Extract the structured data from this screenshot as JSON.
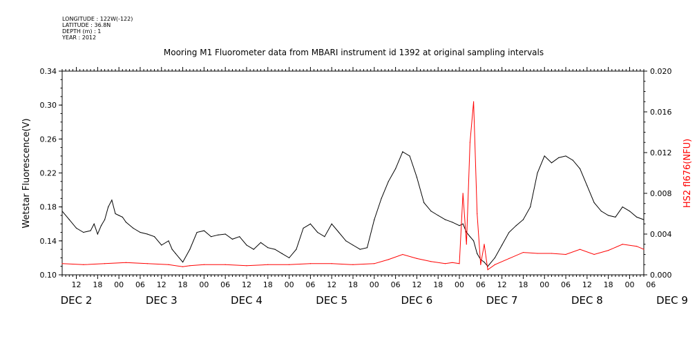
{
  "header": {
    "meta_lines": [
      "LONGITUDE : 122W(-122)",
      "LATITUDE : 36.8N",
      "DEPTH (m) : 1",
      "YEAR : 2012"
    ],
    "title": "Mooring M1 Fluorometer data from MBARI instrument id 1392 at original sampling intervals"
  },
  "colors": {
    "left_series": "#000000",
    "right_series": "#ff0000",
    "axis": "#000000"
  },
  "chart_data": {
    "type": "line",
    "title": "Mooring M1 Fluorometer data from MBARI instrument id 1392 at original sampling intervals",
    "x_hours_per_tick": 6,
    "x_hour_labels": [
      "12",
      "18",
      "00",
      "06",
      "12",
      "18",
      "00",
      "06",
      "12",
      "18",
      "00",
      "06",
      "12",
      "18",
      "00",
      "06",
      "12",
      "18",
      "00",
      "06",
      "12",
      "18",
      "00",
      "06",
      "12",
      "18",
      "00",
      "06"
    ],
    "x_day_labels": [
      "DEC  2",
      "DEC  3",
      "DEC  4",
      "DEC  5",
      "DEC  6",
      "DEC  7",
      "DEC  8",
      "DEC  9"
    ],
    "xlim_hours": [
      8,
      172
    ],
    "y_left": {
      "label": "Wetstar Fluorescence(V)",
      "ylim": [
        0.1,
        0.34
      ],
      "ticks": [
        "0.10",
        "0.14",
        "0.18",
        "0.22",
        "0.26",
        "0.30",
        "0.34"
      ]
    },
    "y_right": {
      "label": "HS2 fl676(NFU)",
      "ylim": [
        0.0,
        0.02
      ],
      "ticks": [
        "0.000",
        "0.004",
        "0.008",
        "0.012",
        "0.016",
        "0.020"
      ]
    },
    "series": [
      {
        "name": "Wetstar Fluorescence(V)",
        "axis": "left",
        "x_hours": [
          8,
          10,
          12,
          14,
          16,
          17,
          18,
          19,
          20,
          21,
          22,
          23,
          24,
          25,
          26,
          28,
          30,
          32,
          34,
          36,
          38,
          39,
          40,
          41,
          42,
          44,
          46,
          48,
          50,
          52,
          54,
          56,
          58,
          60,
          62,
          64,
          66,
          68,
          70,
          72,
          74,
          76,
          78,
          80,
          82,
          84,
          86,
          88,
          90,
          92,
          94,
          96,
          98,
          100,
          102,
          104,
          106,
          108,
          110,
          112,
          114,
          116,
          118,
          120,
          121,
          122,
          123,
          124,
          125,
          126,
          127,
          128,
          130,
          132,
          134,
          136,
          138,
          140,
          142,
          144,
          146,
          148,
          150,
          152,
          154,
          156,
          158,
          160,
          162,
          164,
          166,
          168,
          170,
          172
        ],
        "values": [
          0.175,
          0.165,
          0.155,
          0.15,
          0.152,
          0.16,
          0.148,
          0.158,
          0.165,
          0.18,
          0.188,
          0.172,
          0.17,
          0.168,
          0.162,
          0.155,
          0.15,
          0.148,
          0.145,
          0.135,
          0.14,
          0.13,
          0.125,
          0.12,
          0.115,
          0.13,
          0.15,
          0.152,
          0.145,
          0.147,
          0.148,
          0.142,
          0.145,
          0.135,
          0.13,
          0.138,
          0.132,
          0.13,
          0.125,
          0.12,
          0.13,
          0.155,
          0.16,
          0.15,
          0.145,
          0.16,
          0.15,
          0.14,
          0.135,
          0.13,
          0.132,
          0.165,
          0.19,
          0.21,
          0.225,
          0.245,
          0.24,
          0.215,
          0.185,
          0.175,
          0.17,
          0.165,
          0.162,
          0.158,
          0.16,
          0.15,
          0.145,
          0.14,
          0.125,
          0.118,
          0.115,
          0.11,
          0.12,
          0.135,
          0.15,
          0.158,
          0.165,
          0.18,
          0.22,
          0.24,
          0.232,
          0.238,
          0.24,
          0.235,
          0.225,
          0.205,
          0.185,
          0.175,
          0.17,
          0.168,
          0.18,
          0.175,
          0.168,
          0.165
        ]
      },
      {
        "name": "HS2 fl676(NFU)",
        "axis": "right",
        "x_hours": [
          8,
          14,
          20,
          26,
          32,
          38,
          42,
          44,
          48,
          54,
          60,
          66,
          72,
          78,
          84,
          90,
          96,
          100,
          104,
          108,
          112,
          116,
          118,
          120,
          121,
          122,
          123,
          124,
          125,
          126,
          127,
          128,
          130,
          134,
          138,
          142,
          146,
          150,
          154,
          158,
          162,
          166,
          170,
          172
        ],
        "values": [
          0.0011,
          0.001,
          0.0011,
          0.0012,
          0.0011,
          0.001,
          0.0008,
          0.0009,
          0.001,
          0.001,
          0.0009,
          0.001,
          0.001,
          0.0011,
          0.0011,
          0.001,
          0.0011,
          0.0015,
          0.002,
          0.0016,
          0.0013,
          0.0011,
          0.0012,
          0.0011,
          0.008,
          0.003,
          0.013,
          0.017,
          0.006,
          0.001,
          0.003,
          0.0005,
          0.001,
          0.0016,
          0.0022,
          0.0021,
          0.0021,
          0.002,
          0.0025,
          0.002,
          0.0024,
          0.003,
          0.0028,
          0.0025
        ]
      }
    ]
  }
}
